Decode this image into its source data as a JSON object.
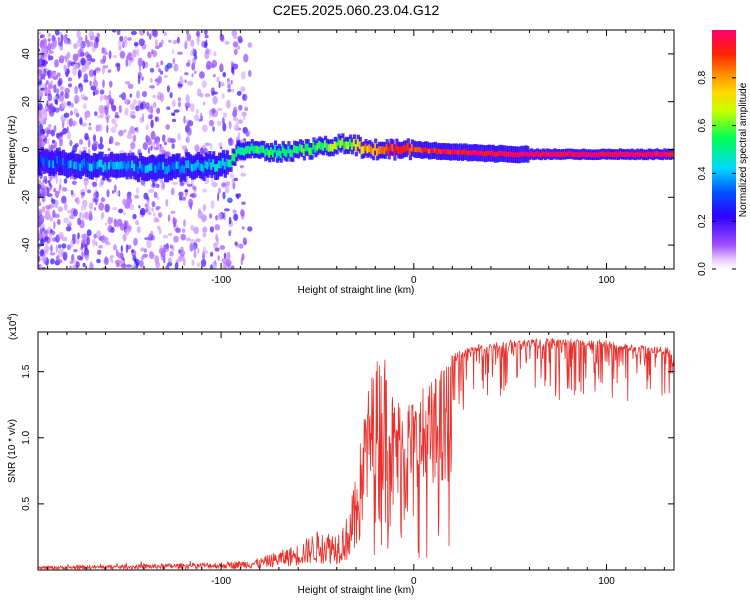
{
  "title": "C2E5.2025.060.23.04.G12",
  "colors": {
    "snr_line": "#e8312d",
    "axis": "#000000",
    "background": "#ffffff"
  },
  "chart_data": [
    {
      "type": "heatmap",
      "xlabel": "Height of straight line (km)",
      "ylabel": "Frequency (Hz)",
      "xlim": [
        -195,
        135
      ],
      "ylim": [
        -50,
        50
      ],
      "xticks": [
        "-100",
        "0",
        "100"
      ],
      "yticks": [
        "-40",
        "-20",
        "0",
        "20",
        "40"
      ],
      "colorbar": {
        "label": "Normalized spectral amplitude",
        "range": [
          0.0,
          1.0
        ],
        "ticks": [
          "0.0",
          "0.2",
          "0.4",
          "0.6",
          "0.8"
        ],
        "colormap": "rainbow (white-purple-blue-cyan-green-yellow-orange-red)"
      },
      "ridge": {
        "description": "Frequency of strongest spectral amplitude vs height",
        "x": [
          -195,
          -160,
          -130,
          -110,
          -96,
          -90,
          -70,
          -55,
          -40,
          -33,
          -25,
          -10,
          0,
          20,
          50,
          80,
          100,
          135
        ],
        "freq": [
          -5,
          -7,
          -8,
          -7,
          -6,
          0,
          -1,
          0,
          2,
          3,
          0,
          0,
          0,
          -1,
          -2,
          -2,
          -2,
          -2
        ],
        "amplitude": [
          0.3,
          0.4,
          0.35,
          0.4,
          0.45,
          0.55,
          0.5,
          0.55,
          0.6,
          0.6,
          0.8,
          0.9,
          0.9,
          0.95,
          1.0,
          1.0,
          1.0,
          0.95
        ]
      }
    },
    {
      "type": "line",
      "xlabel": "Height of straight line (km)",
      "ylabel": "SNR (10 * v/v)",
      "yscale_label": "(x10",
      "yscale_exp": "4",
      "xlim": [
        -195,
        135
      ],
      "ylim": [
        0.0,
        1.8
      ],
      "xticks": [
        "-100",
        "0",
        "100"
      ],
      "yticks": [
        "0.5",
        "1.0",
        "1.5"
      ],
      "envelope": {
        "x": [
          -195,
          -150,
          -125,
          -100,
          -90,
          -80,
          -60,
          -50,
          -40,
          -35,
          -30,
          -25,
          -20,
          -15,
          -10,
          -5,
          0,
          5,
          10,
          15,
          20,
          30,
          40,
          60,
          80,
          100,
          120,
          135
        ],
        "y": [
          0.03,
          0.04,
          0.05,
          0.06,
          0.07,
          0.09,
          0.2,
          0.3,
          0.3,
          0.4,
          0.7,
          1.3,
          1.6,
          1.65,
          1.3,
          1.35,
          1.3,
          1.4,
          1.45,
          1.55,
          1.65,
          1.7,
          1.73,
          1.75,
          1.76,
          1.74,
          1.7,
          1.68
        ]
      }
    }
  ]
}
